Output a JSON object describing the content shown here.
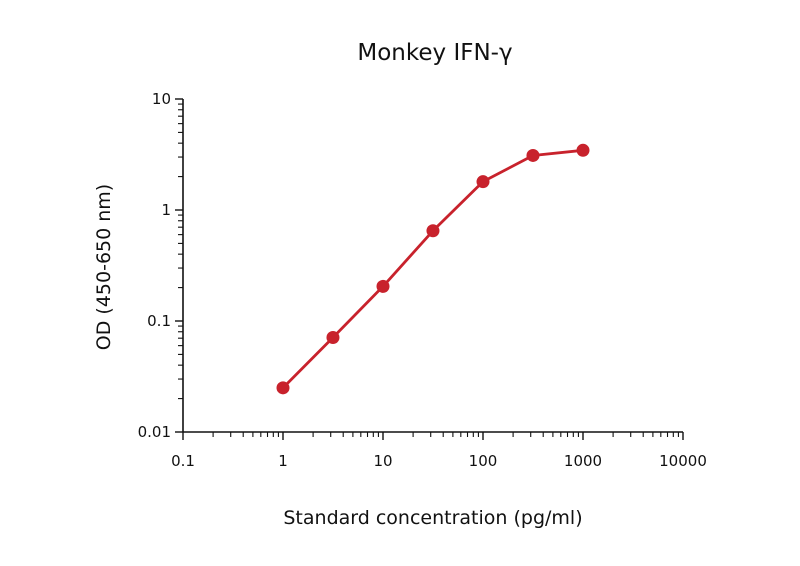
{
  "chart_data": {
    "type": "line",
    "title": "Monkey IFN-γ",
    "xlabel": "Standard concentration (pg/ml)",
    "ylabel": "OD (450-650 nm)",
    "x_scale": "log",
    "y_scale": "log",
    "xlim": [
      0.1,
      10000
    ],
    "ylim": [
      0.01,
      10
    ],
    "x_ticks": [
      "0.1",
      "1",
      "10",
      "100",
      "1000",
      "10000"
    ],
    "y_ticks": [
      "0.01",
      "0.1",
      "1",
      "10"
    ],
    "grid": false,
    "legend": "none",
    "series": [
      {
        "color": "#c8222c",
        "x": [
          1,
          3.16,
          10,
          31.6,
          100,
          316,
          1000
        ],
        "y": [
          0.025,
          0.071,
          0.205,
          0.65,
          1.8,
          3.1,
          3.45
        ]
      }
    ]
  }
}
